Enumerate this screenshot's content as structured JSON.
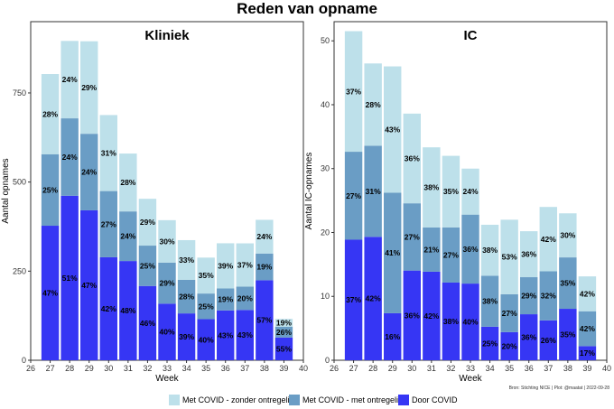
{
  "title": "Reden van opname",
  "source": "Bron: Stichting NICE | Plot: @maatat | 2022-09-28",
  "colors": {
    "zonder": "#bde0ea",
    "met": "#6a9dc5",
    "door": "#3636f4"
  },
  "legend": [
    {
      "label": "Met COVID - zonder ontregeling",
      "key": "zonder"
    },
    {
      "label": "Met COVID - met ontregeling",
      "key": "met"
    },
    {
      "label": "Door COVID",
      "key": "door"
    }
  ],
  "chart_data": [
    {
      "type": "bar",
      "title": "Kliniek",
      "xlabel": "Week",
      "ylabel": "Aantal opnames",
      "xlim": [
        26,
        40
      ],
      "ylim": [
        0,
        950
      ],
      "xticks": [
        26,
        27,
        28,
        29,
        30,
        31,
        32,
        33,
        34,
        35,
        36,
        37,
        38,
        39,
        40
      ],
      "yticks": [
        0,
        250,
        500,
        750
      ],
      "categories": [
        27,
        28,
        29,
        30,
        31,
        32,
        33,
        34,
        35,
        36,
        37,
        38,
        39
      ],
      "totals": [
        803,
        905,
        895,
        688,
        580,
        453,
        397,
        337,
        288,
        325,
        328,
        394,
        116
      ],
      "series": [
        {
          "name": "Door COVID",
          "key": "door",
          "percent": [
            47,
            51,
            47,
            42,
            48,
            46,
            40,
            39,
            40,
            43,
            43,
            57,
            55
          ]
        },
        {
          "name": "Met COVID - met ontregeling",
          "key": "met",
          "percent": [
            25,
            24,
            24,
            27,
            24,
            25,
            29,
            28,
            25,
            19,
            20,
            19,
            26
          ]
        },
        {
          "name": "Met COVID - zonder ontregeling",
          "key": "zonder",
          "percent": [
            28,
            24,
            29,
            31,
            28,
            29,
            30,
            33,
            35,
            39,
            37,
            24,
            19
          ]
        }
      ]
    },
    {
      "type": "bar",
      "title": "IC",
      "xlabel": "Week",
      "ylabel": "Aantal IC-opnames",
      "xlim": [
        26,
        40
      ],
      "ylim": [
        0,
        53
      ],
      "xticks": [
        26,
        27,
        28,
        29,
        30,
        31,
        32,
        33,
        34,
        35,
        36,
        37,
        38,
        39,
        40
      ],
      "yticks": [
        0,
        10,
        20,
        30,
        40,
        50
      ],
      "categories": [
        27,
        28,
        29,
        30,
        31,
        32,
        33,
        34,
        35,
        36,
        37,
        38,
        39
      ],
      "totals": [
        51,
        46,
        46,
        39,
        33,
        32,
        30,
        21,
        22,
        20,
        24,
        23,
        13
      ],
      "series": [
        {
          "name": "Door COVID",
          "key": "door",
          "percent": [
            37,
            42,
            16,
            36,
            42,
            38,
            40,
            25,
            20,
            36,
            26,
            35,
            17
          ]
        },
        {
          "name": "Met COVID - met ontregeling",
          "key": "met",
          "percent": [
            27,
            31,
            41,
            27,
            21,
            27,
            36,
            38,
            27,
            29,
            32,
            35,
            42
          ]
        },
        {
          "name": "Met COVID - zonder ontregeling",
          "key": "zonder",
          "percent": [
            37,
            28,
            43,
            36,
            38,
            35,
            24,
            38,
            53,
            36,
            42,
            30,
            42
          ]
        }
      ]
    }
  ]
}
